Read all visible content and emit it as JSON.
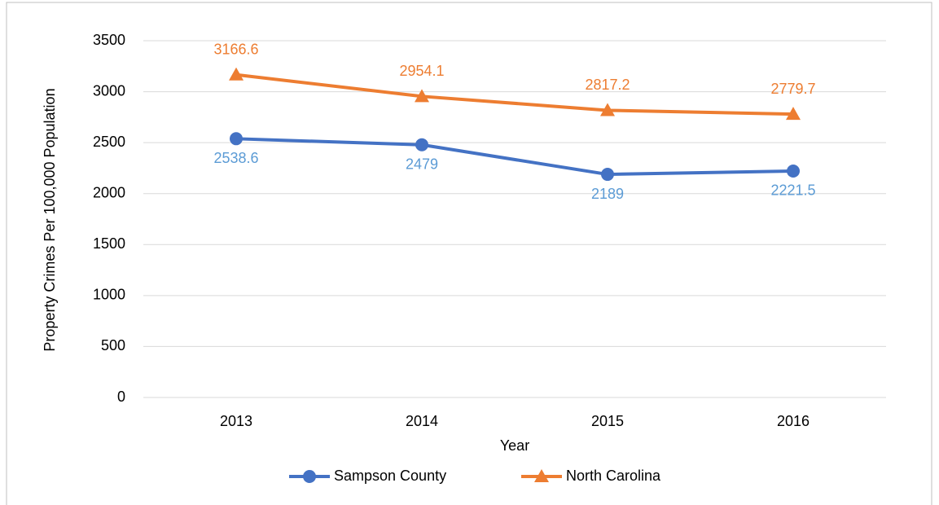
{
  "chart_data": {
    "type": "line",
    "x_label": "Year",
    "y_label": "Property Crimes Per 100,000 Population",
    "categories": [
      "2013",
      "2014",
      "2015",
      "2016"
    ],
    "series": [
      {
        "name": "Sampson County",
        "color": "#4472c4",
        "label_color": "#5b9bd5",
        "marker": "circle",
        "values": [
          2538.6,
          2479,
          2189,
          2221.5
        ]
      },
      {
        "name": "North Carolina",
        "color": "#ed7d31",
        "label_color": "#ed7d31",
        "marker": "triangle",
        "values": [
          3166.6,
          2954.1,
          2817.2,
          2779.7
        ]
      }
    ],
    "ylim": [
      0,
      3500
    ],
    "yticks": [
      0,
      500,
      1000,
      1500,
      2000,
      2500,
      3000,
      3500
    ],
    "grid": true,
    "legend": "bottom"
  }
}
